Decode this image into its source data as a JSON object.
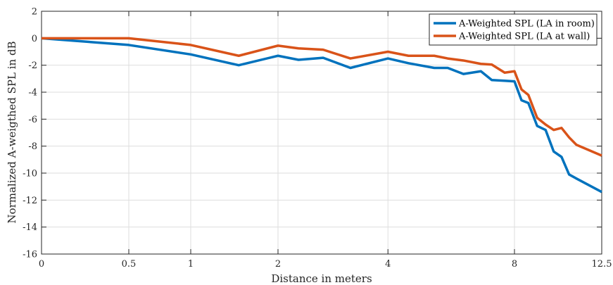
{
  "chart_data": {
    "type": "line",
    "title": "",
    "xlabel": "Distance in meters",
    "ylabel": "Normalized A-weigthed SPL in dB",
    "x_scale": "log2(1 + distance)",
    "xlim": [
      0,
      12.5
    ],
    "ylim": [
      -16,
      2
    ],
    "x_ticks": [
      0,
      0.5,
      1,
      2,
      4,
      8,
      12.5
    ],
    "x_tick_labels": [
      "0",
      "0.5",
      "1",
      "2",
      "4",
      "8",
      "12.5"
    ],
    "y_ticks": [
      -16,
      -14,
      -12,
      -10,
      -8,
      -6,
      -4,
      -2,
      0,
      2
    ],
    "y_tick_labels": [
      "-16",
      "-14",
      "-12",
      "-10",
      "-8",
      "-6",
      "-4",
      "-2",
      "0",
      "2"
    ],
    "grid": true,
    "legend_position": "top-right",
    "series": [
      {
        "name": "A-Weighted SPL (LA in room)",
        "color": "#0072bd",
        "points": [
          [
            0,
            0
          ],
          [
            0.5,
            -0.5
          ],
          [
            1,
            -1.2
          ],
          [
            1.5,
            -2.0
          ],
          [
            2,
            -1.3
          ],
          [
            2.3,
            -1.6
          ],
          [
            2.7,
            -1.45
          ],
          [
            3.2,
            -2.2
          ],
          [
            4,
            -1.5
          ],
          [
            4.5,
            -1.85
          ],
          [
            5.2,
            -2.2
          ],
          [
            5.6,
            -2.2
          ],
          [
            6.1,
            -2.65
          ],
          [
            6.7,
            -2.45
          ],
          [
            7.1,
            -3.1
          ],
          [
            7.6,
            -3.15
          ],
          [
            8.0,
            -3.2
          ],
          [
            8.3,
            -4.6
          ],
          [
            8.6,
            -4.8
          ],
          [
            9.0,
            -6.5
          ],
          [
            9.4,
            -6.8
          ],
          [
            9.8,
            -8.4
          ],
          [
            10.2,
            -8.8
          ],
          [
            10.6,
            -10.1
          ],
          [
            11.0,
            -10.4
          ],
          [
            12.5,
            -11.4
          ]
        ]
      },
      {
        "name": "A-Weighted SPL (LA at wall)",
        "color": "#d95319",
        "points": [
          [
            0,
            0
          ],
          [
            0.5,
            0.0
          ],
          [
            1,
            -0.5
          ],
          [
            1.5,
            -1.3
          ],
          [
            2,
            -0.55
          ],
          [
            2.3,
            -0.75
          ],
          [
            2.7,
            -0.85
          ],
          [
            3.2,
            -1.5
          ],
          [
            4,
            -1.0
          ],
          [
            4.5,
            -1.3
          ],
          [
            5.2,
            -1.3
          ],
          [
            5.6,
            -1.5
          ],
          [
            6.1,
            -1.65
          ],
          [
            6.7,
            -1.9
          ],
          [
            7.1,
            -1.95
          ],
          [
            7.6,
            -2.55
          ],
          [
            8.0,
            -2.45
          ],
          [
            8.3,
            -3.8
          ],
          [
            8.6,
            -4.2
          ],
          [
            9.0,
            -5.9
          ],
          [
            9.4,
            -6.4
          ],
          [
            9.8,
            -6.8
          ],
          [
            10.2,
            -6.65
          ],
          [
            10.6,
            -7.35
          ],
          [
            11.0,
            -7.9
          ],
          [
            12.5,
            -8.7
          ]
        ]
      }
    ]
  }
}
